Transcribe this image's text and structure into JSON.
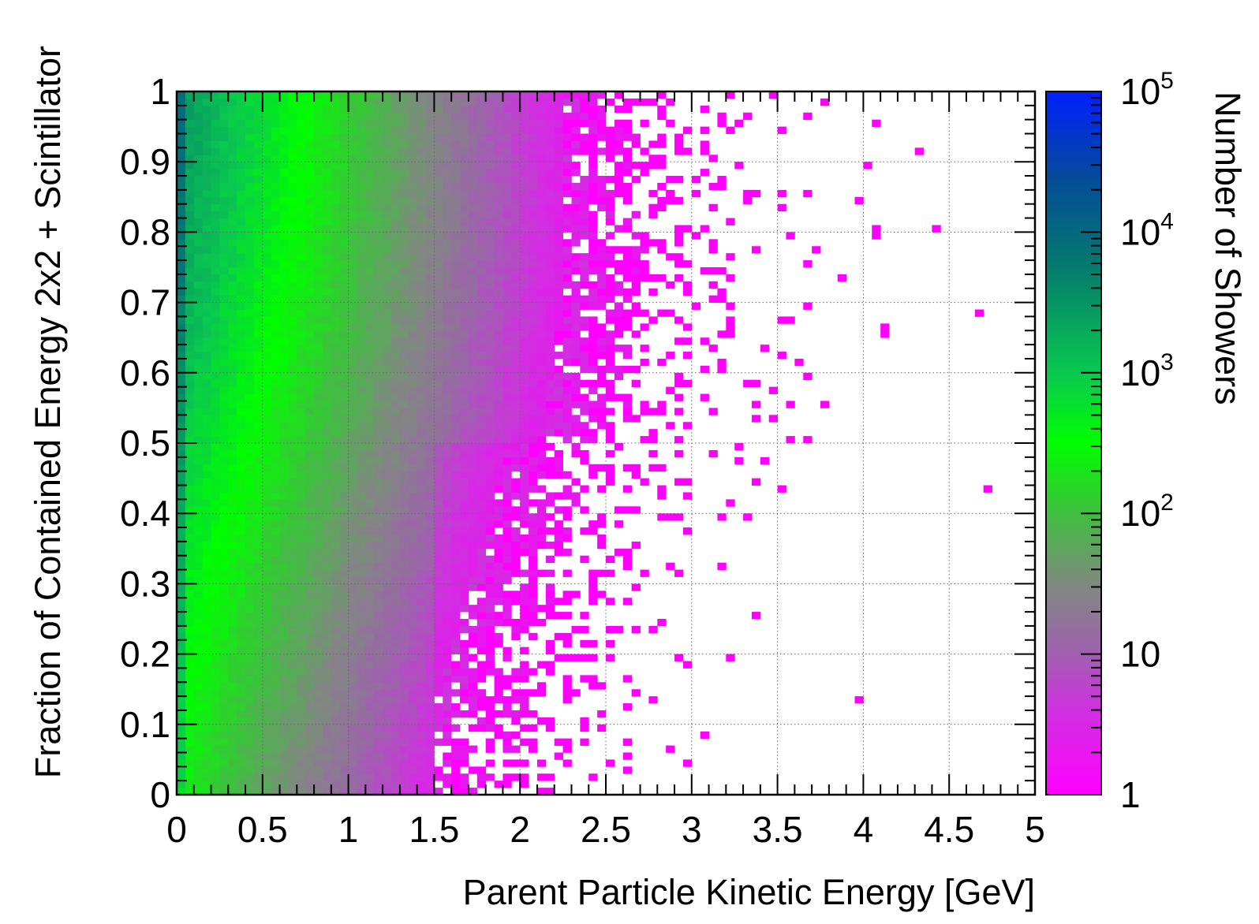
{
  "chart_data": {
    "type": "heatmap",
    "xlabel": "Parent Particle Kinetic Energy [GeV]",
    "ylabel": "Fraction of Contained Energy 2x2 + Scintillator",
    "zlabel": "Number of Showers",
    "xlim": [
      0,
      5
    ],
    "ylim": [
      0,
      1
    ],
    "zlim": [
      1,
      100000
    ],
    "z_scale": "log",
    "grid": true,
    "bins": {
      "x": 100,
      "y": 100
    },
    "x_ticks": [
      "0",
      "0.5",
      "1",
      "1.5",
      "2",
      "2.5",
      "3",
      "3.5",
      "4",
      "4.5",
      "5"
    ],
    "y_ticks": [
      "0",
      "0.1",
      "0.2",
      "0.3",
      "0.4",
      "0.5",
      "0.6",
      "0.7",
      "0.8",
      "0.9",
      "1"
    ],
    "z_ticks": [
      {
        "value": 1,
        "label": "1"
      },
      {
        "value": 10,
        "label": "10"
      },
      {
        "value": 100,
        "label": "10",
        "exp": "2"
      },
      {
        "value": 1000,
        "label": "10",
        "exp": "3"
      },
      {
        "value": 10000,
        "label": "10",
        "exp": "4"
      },
      {
        "value": 100000,
        "label": "10",
        "exp": "5"
      }
    ],
    "colormap": [
      "#ff00ff",
      "#c73ed3",
      "#8f7e8f",
      "#39ba3a",
      "#00ff00",
      "#0a8550",
      "#006b8b",
      "#0026ff"
    ],
    "approx_density": "counts peak near x=0.2-0.4 GeV, y=0.85-0.95 (~1000-3000 showers); density falls roughly exponentially with energy, reaching single counts beyond ~2.5 GeV, extending to 5 GeV at high contained fraction",
    "peak_count_estimate": 3000
  }
}
